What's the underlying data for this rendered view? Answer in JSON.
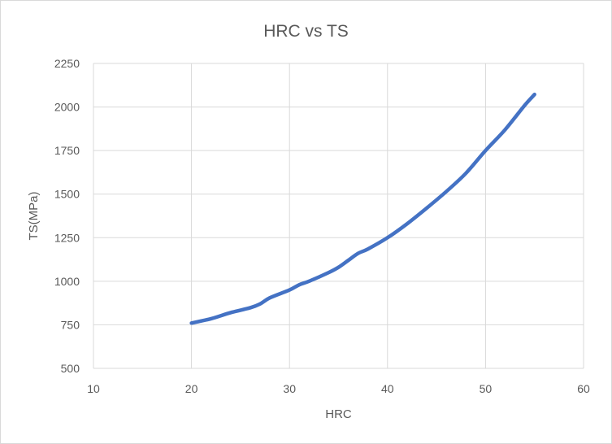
{
  "chart_data": {
    "type": "line",
    "title": "HRC vs TS",
    "xlabel": "HRC",
    "ylabel": "TS(MPa)",
    "xlim": [
      10,
      60
    ],
    "ylim": [
      500,
      2250
    ],
    "x_ticks": [
      10,
      20,
      30,
      40,
      50,
      60
    ],
    "y_ticks": [
      500,
      750,
      1000,
      1250,
      1500,
      1750,
      2000,
      2250
    ],
    "grid": true,
    "legend": "none",
    "series": [
      {
        "color": "#4472c4",
        "points": [
          [
            20,
            760
          ],
          [
            22,
            785
          ],
          [
            24,
            820
          ],
          [
            26,
            848
          ],
          [
            27,
            870
          ],
          [
            28,
            905
          ],
          [
            30,
            950
          ],
          [
            31,
            980
          ],
          [
            32,
            1000
          ],
          [
            34,
            1050
          ],
          [
            35,
            1080
          ],
          [
            36,
            1120
          ],
          [
            37,
            1160
          ],
          [
            38,
            1185
          ],
          [
            40,
            1250
          ],
          [
            42,
            1330
          ],
          [
            44,
            1420
          ],
          [
            46,
            1515
          ],
          [
            48,
            1620
          ],
          [
            50,
            1750
          ],
          [
            52,
            1870
          ],
          [
            54,
            2010
          ],
          [
            55,
            2072
          ]
        ]
      }
    ]
  }
}
